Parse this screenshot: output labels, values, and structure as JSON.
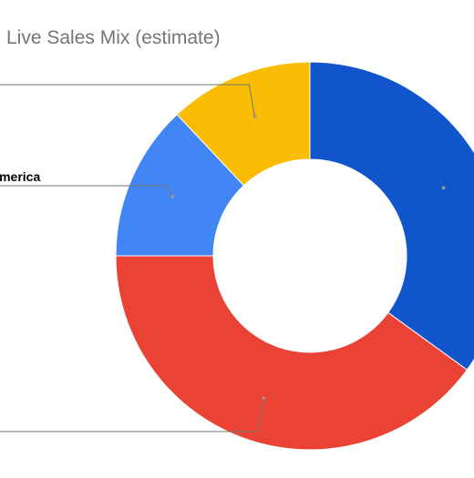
{
  "chart_data": {
    "type": "pie",
    "donut": true,
    "title": "Live Sales Mix (estimate)",
    "colors": {
      "background": "#ffffff",
      "title_text": "#757575",
      "leader_line": "#757575",
      "slice_border": "#ffffff"
    },
    "slices": [
      {
        "label": "",
        "value": 35,
        "color": "#1155cc"
      },
      {
        "label": "",
        "value": 40,
        "color": "#ea4335"
      },
      {
        "label": "America",
        "value": 13,
        "color": "#4285f4"
      },
      {
        "label": "",
        "value": 12,
        "color": "#fbbc04"
      }
    ]
  }
}
